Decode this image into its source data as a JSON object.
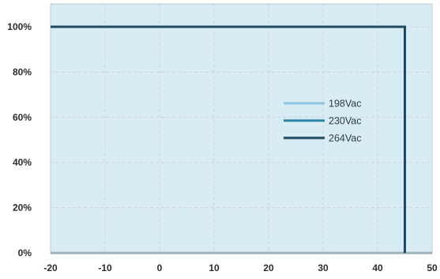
{
  "chart_data": {
    "type": "line",
    "x": [
      -20,
      45,
      45
    ],
    "series": [
      {
        "name": "198Vac",
        "values": [
          100,
          100,
          0
        ],
        "color": "#8cc8e3"
      },
      {
        "name": "230Vac",
        "values": [
          100,
          100,
          0
        ],
        "color": "#2b83a6"
      },
      {
        "name": "264Vac",
        "values": [
          100,
          100,
          0
        ],
        "color": "#1c4a60"
      }
    ],
    "xlim": [
      -20,
      50
    ],
    "ylim": [
      0,
      100
    ],
    "x_ticks": [
      {
        "value": -20,
        "label": "-20"
      },
      {
        "value": -10,
        "label": "-10"
      },
      {
        "value": 0,
        "label": "0"
      },
      {
        "value": 10,
        "label": "10"
      },
      {
        "value": 20,
        "label": "20"
      },
      {
        "value": 30,
        "label": "30"
      },
      {
        "value": 40,
        "label": "40"
      },
      {
        "value": 50,
        "label": "50"
      }
    ],
    "y_ticks": [
      {
        "value": 0,
        "label": "0%"
      },
      {
        "value": 20,
        "label": "20%"
      },
      {
        "value": 40,
        "label": "40%"
      },
      {
        "value": 60,
        "label": "60%"
      },
      {
        "value": 80,
        "label": "80%"
      },
      {
        "value": 100,
        "label": "100%"
      }
    ],
    "grid": true,
    "legend_position": "center-right",
    "plot_background": "#d8ecf3",
    "title": "",
    "xlabel": "",
    "ylabel": ""
  }
}
